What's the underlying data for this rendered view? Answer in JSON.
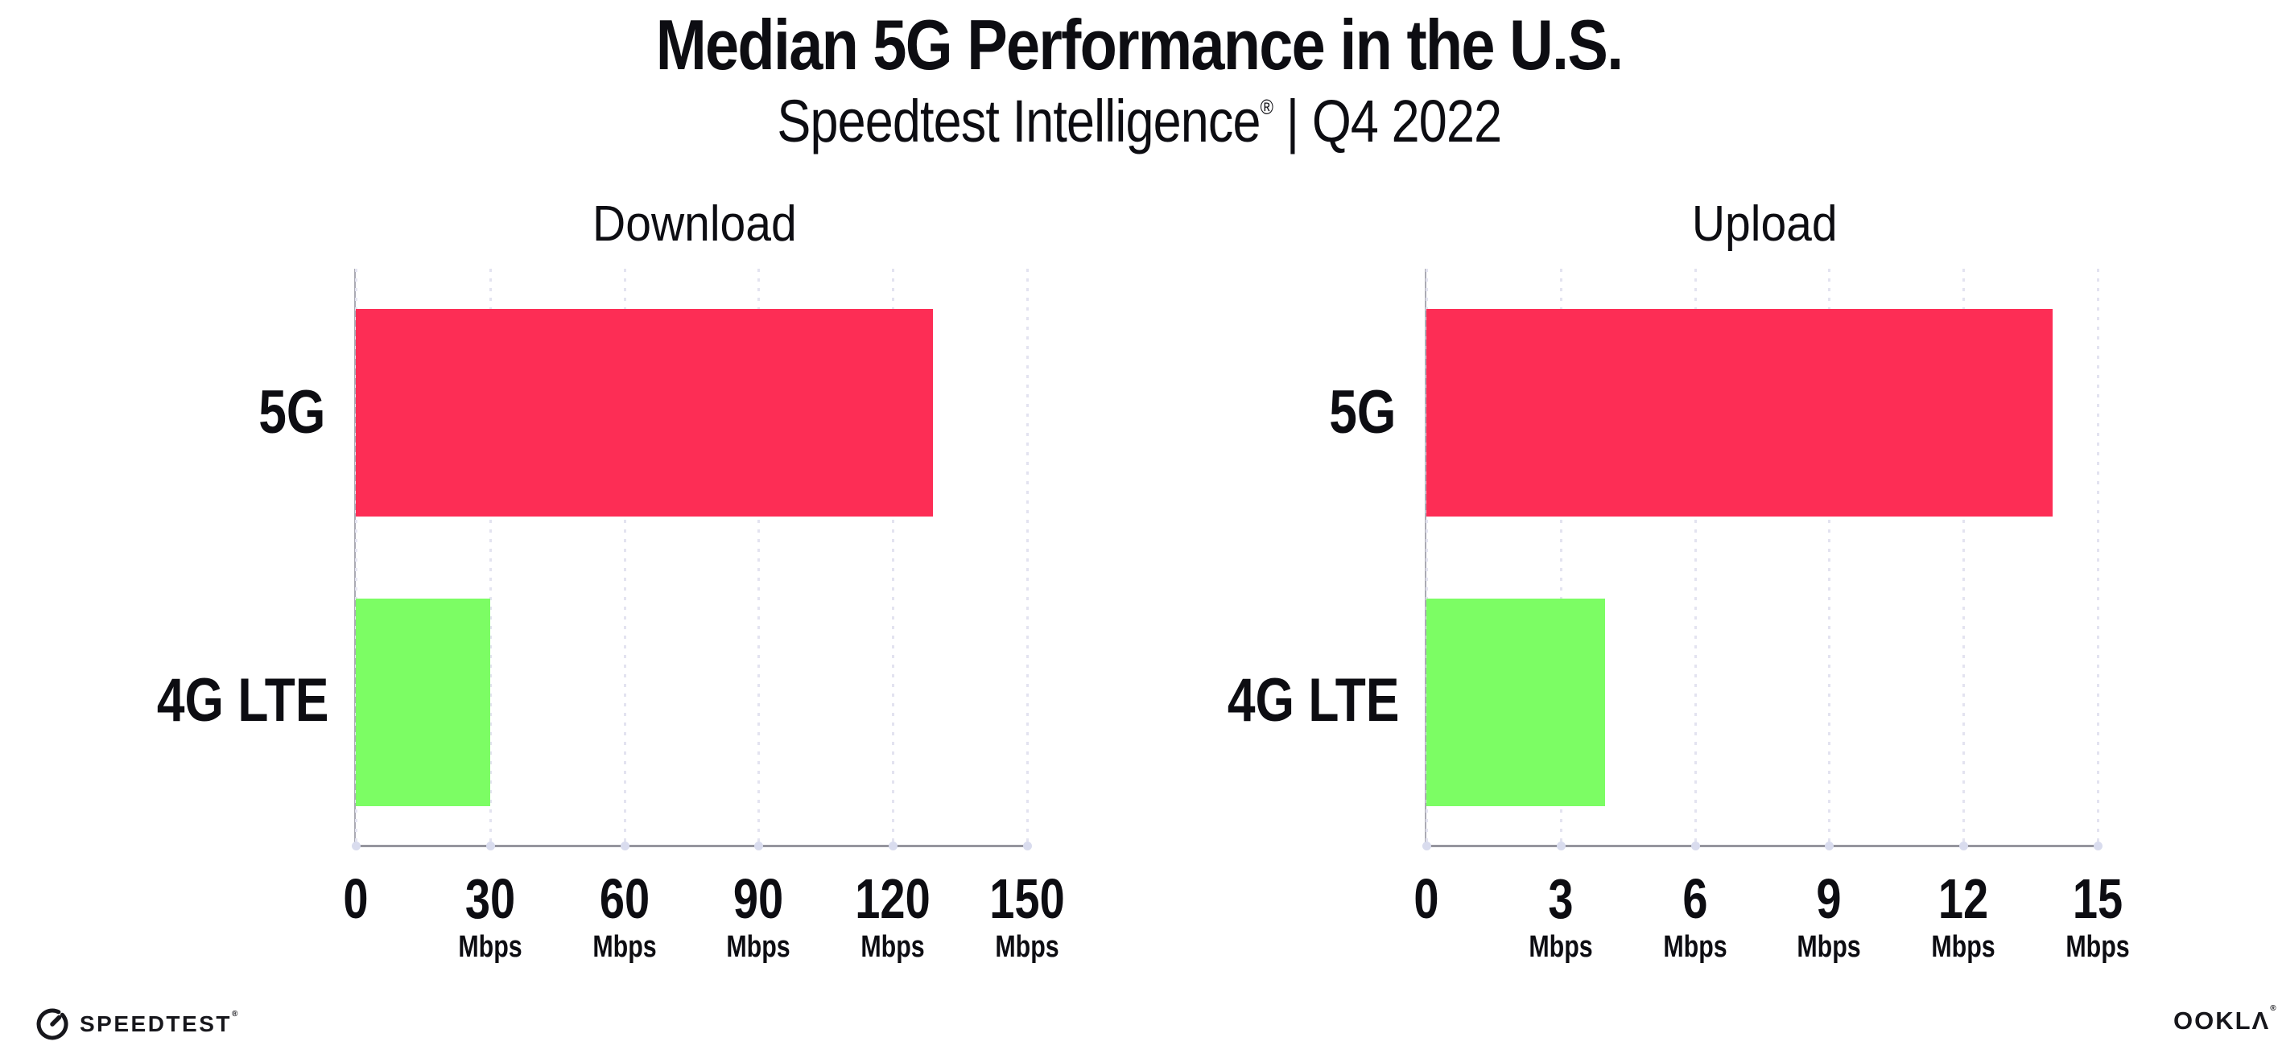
{
  "header": {
    "title": "Median 5G Performance in the U.S.",
    "subtitle_product": "Speedtest Intelligence",
    "subtitle_reg": "®",
    "subtitle_separator": " | ",
    "subtitle_period": "Q4 2022"
  },
  "chart_data": [
    {
      "type": "bar",
      "orientation": "horizontal",
      "title": "Download",
      "categories": [
        "5G",
        "4G LTE"
      ],
      "values": [
        129,
        30
      ],
      "value_unit": "Mbps",
      "xlim": [
        0,
        150
      ],
      "xticks": [
        0,
        30,
        60,
        90,
        120,
        150
      ],
      "tick_suffix": "Mbps",
      "bar_colors": [
        "#FD2D55",
        "#7CFD64"
      ],
      "grid": "vertical-dotted",
      "legend": "none"
    },
    {
      "type": "bar",
      "orientation": "horizontal",
      "title": "Upload",
      "categories": [
        "5G",
        "4G LTE"
      ],
      "values": [
        14,
        4
      ],
      "value_unit": "Mbps",
      "xlim": [
        0,
        15
      ],
      "xticks": [
        0,
        3,
        6,
        9,
        12,
        15
      ],
      "tick_suffix": "Mbps",
      "bar_colors": [
        "#FD2D55",
        "#7CFD64"
      ],
      "grid": "vertical-dotted",
      "legend": "none"
    }
  ],
  "footer": {
    "speedtest_wordmark": "SPEEDTEST",
    "speedtest_reg": "®",
    "ookla_wordmark": "OOKLΛ",
    "ookla_reg": "®"
  },
  "colors": {
    "bar_5g": "#FD2D55",
    "bar_4g_lte": "#7CFD64",
    "gridline": "#E3E3F0",
    "axis_line": "#96969E",
    "axis_dot": "#D9DCEE",
    "text": "#0D0D12"
  }
}
